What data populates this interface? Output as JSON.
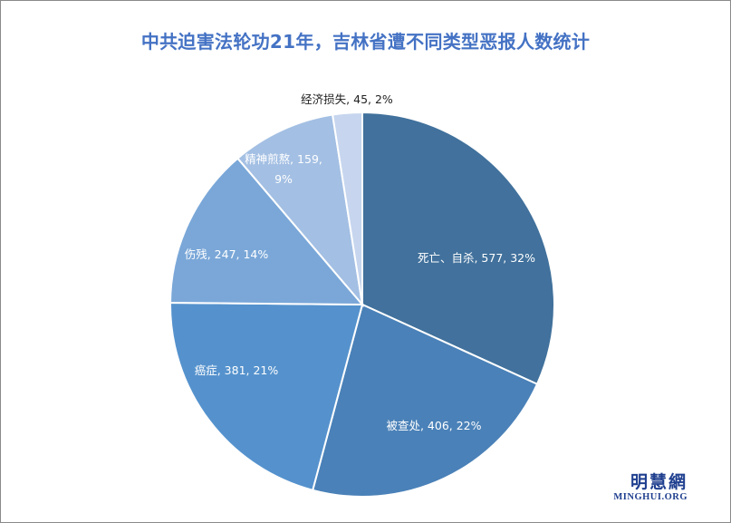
{
  "chart_data": {
    "type": "pie",
    "title": "中共迫害法轮功21年，吉林省遭不同类型恶报人数统计",
    "categories": [
      "死亡、自杀",
      "被查处",
      "癌症",
      "伤残",
      "精神煎熬",
      "经济损失"
    ],
    "values": [
      577,
      406,
      381,
      247,
      159,
      45
    ],
    "percents": [
      "32%",
      "22%",
      "21%",
      "14%",
      "9%",
      "2%"
    ],
    "labels": [
      [
        "死亡、自杀, 577, 32%"
      ],
      [
        "被查处, 406, 22%"
      ],
      [
        "癌症, 381, 21%"
      ],
      [
        "伤残, 247, 14%"
      ],
      [
        "精神煎熬, 159,",
        "9%"
      ],
      [
        "经济损失, 45, 2%"
      ]
    ],
    "colors": [
      "#41719c",
      "#4a81b8",
      "#5592cd",
      "#7aa7d8",
      "#a3bfe3",
      "#c7d6ee"
    ],
    "label_colors": [
      "#ffffff",
      "#ffffff",
      "#ffffff",
      "#ffffff",
      "#ffffff",
      "#222222"
    ],
    "start": "12 o'clock, clockwise",
    "legend": "none"
  },
  "logo": {
    "cn": "明慧網",
    "en": "MINGHUI.ORG"
  }
}
